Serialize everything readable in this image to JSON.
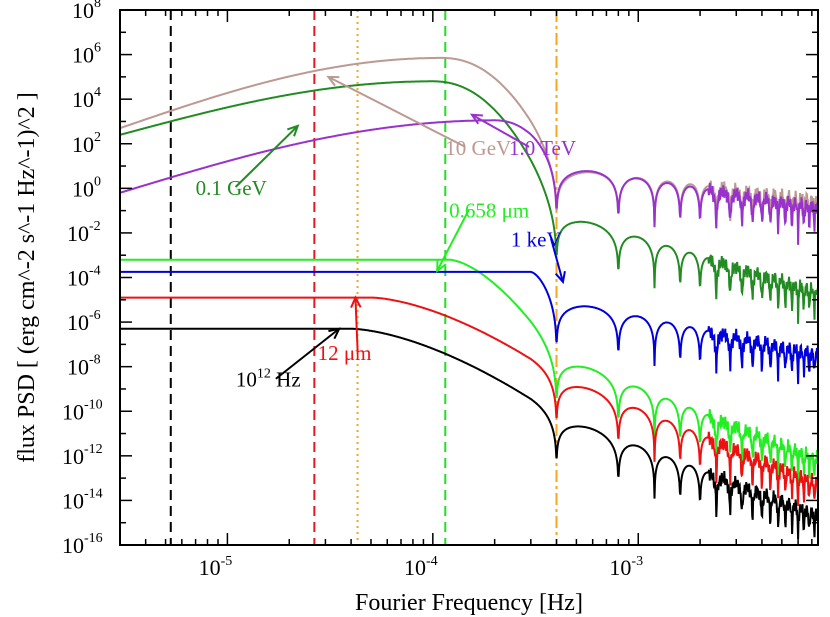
{
  "chart_data": {
    "type": "line",
    "xlabel": "Fourier Frequency [Hz]",
    "ylabel": "flux PSD [ (erg cm^-2 s^-1 Hz^-1)^2 ]",
    "xscale": "log",
    "yscale": "log",
    "xlim": [
      3e-06,
      0.0075
    ],
    "ylim": [
      1e-16,
      100000000.0
    ],
    "x_ticks": [
      {
        "value": 1e-05,
        "base": "10",
        "exp": "-5"
      },
      {
        "value": 0.0001,
        "base": "10",
        "exp": "-4"
      },
      {
        "value": 0.001,
        "base": "10",
        "exp": "-3"
      }
    ],
    "y_ticks": [
      {
        "value": 100000000.0,
        "base": "10",
        "exp": "8"
      },
      {
        "value": 1000000.0,
        "base": "10",
        "exp": "6"
      },
      {
        "value": 10000.0,
        "base": "10",
        "exp": "4"
      },
      {
        "value": 100.0,
        "base": "10",
        "exp": "2"
      },
      {
        "value": 1.0,
        "base": "10",
        "exp": "0"
      },
      {
        "value": 0.01,
        "base": "10",
        "exp": "-2"
      },
      {
        "value": 0.0001,
        "base": "10",
        "exp": "-4"
      },
      {
        "value": 1e-06,
        "base": "10",
        "exp": "-6"
      },
      {
        "value": 1e-08,
        "base": "10",
        "exp": "-8"
      },
      {
        "value": 1e-10,
        "base": "10",
        "exp": "-10"
      },
      {
        "value": 1e-12,
        "base": "10",
        "exp": "-12"
      },
      {
        "value": 1e-14,
        "base": "10",
        "exp": "-14"
      },
      {
        "value": 1e-16,
        "base": "10",
        "exp": "-16"
      }
    ],
    "vertical_lines": [
      {
        "x": 5.3e-06,
        "color": "#000000",
        "style": "dashed"
      },
      {
        "x": 2.65e-05,
        "color": "#e41a1c",
        "style": "dashed"
      },
      {
        "x": 4.3e-05,
        "color": "#f5a623",
        "style": "dotted"
      },
      {
        "x": 0.000115,
        "color": "#22dd22",
        "style": "dashed"
      },
      {
        "x": 0.0004,
        "color": "#f5a623",
        "style": "dashdot"
      }
    ],
    "series": [
      {
        "name": "10 GeV",
        "color": "#bc9a92",
        "shape": "rise",
        "log_plateau": 5.85,
        "x_peak": 0.00011,
        "log_start": 2.7,
        "width": 0.1,
        "log_tail_1": 0.9,
        "log_tail_2": -0.5,
        "x_notch": 0.0004
      },
      {
        "name": "0.1 GeV",
        "color": "#228b22",
        "shape": "rise",
        "log_plateau": 4.8,
        "x_peak": 0.0001,
        "log_start": 2.4,
        "width": 0.1,
        "log_tail_1": -1.1,
        "log_tail_2": -4.6,
        "x_notch": 0.0004
      },
      {
        "name": "1.0 TeV",
        "color": "#9932cc",
        "shape": "rise",
        "log_plateau": 3.05,
        "x_peak": 0.0002,
        "log_start": -0.2,
        "width": 0.1,
        "log_tail_1": 1.0,
        "log_tail_2": -0.8,
        "x_notch": 0.0004
      },
      {
        "name": "0.658 μm",
        "color": "#22ee22",
        "shape": "flat",
        "log_plateau": -3.2,
        "x_break": 0.00012,
        "width": 0.09,
        "log_tail_1": -7.5,
        "log_tail_2": -12.1,
        "x_notch": 0.0004
      },
      {
        "name": "1 keV",
        "color": "#0000dd",
        "shape": "flat",
        "log_plateau": -3.75,
        "x_break": 0.0003,
        "width": 0.1,
        "log_tail_1": -5.0,
        "log_tail_2": -7.4,
        "x_notch": 0.0004
      },
      {
        "name": "12 μm",
        "color": "#ee1111",
        "shape": "flat",
        "log_plateau": -4.9,
        "x_break": 5e-05,
        "width": 0.07,
        "log_tail_1": -8.4,
        "log_tail_2": -13.2,
        "x_notch": 0.0004
      },
      {
        "name": "10^12 Hz",
        "color": "#000000",
        "shape": "flat",
        "log_plateau": -6.3,
        "x_break": 4e-05,
        "width": 0.06,
        "log_tail_1": -10.2,
        "log_tail_2": -14.6,
        "x_notch": 0.0004
      }
    ],
    "labels": [
      {
        "base": "10 GeV",
        "sup": "",
        "color": "#bc9a92",
        "x": 0.000115,
        "y": 1.5,
        "arrow_to": [
          3.1e-05,
          5.0
        ]
      },
      {
        "base": "1.0 TeV",
        "sup": "",
        "color": "#9932cc",
        "x": 0.000235,
        "y": 1.5,
        "arrow_to": [
          0.000155,
          3.3
        ]
      },
      {
        "base": "0.1 GeV",
        "sup": "",
        "color": "#228b22",
        "x": 7e-06,
        "y": -0.3,
        "arrow_to": [
          2.2e-05,
          2.8
        ]
      },
      {
        "base": "0.658 μm",
        "sup": "",
        "color": "#22ee22",
        "x": 0.00012,
        "y": -1.3,
        "arrow_to": [
          0.000105,
          -3.7
        ]
      },
      {
        "base": "1 keV",
        "sup": "",
        "color": "#0000dd",
        "x": 0.00024,
        "y": -2.6,
        "arrow_to": [
          0.00043,
          -4.2
        ]
      },
      {
        "base": "12 μm",
        "sup": "",
        "color": "#ee1111",
        "x": 2.75e-05,
        "y": -7.7,
        "arrow_to": [
          4.2e-05,
          -4.9
        ]
      },
      {
        "base": "10",
        "sup": "12",
        "suffix": " Hz",
        "color": "#000000",
        "x": 1.1e-05,
        "y": -8.9,
        "arrow_to": [
          3.5e-05,
          -6.3
        ]
      }
    ]
  }
}
